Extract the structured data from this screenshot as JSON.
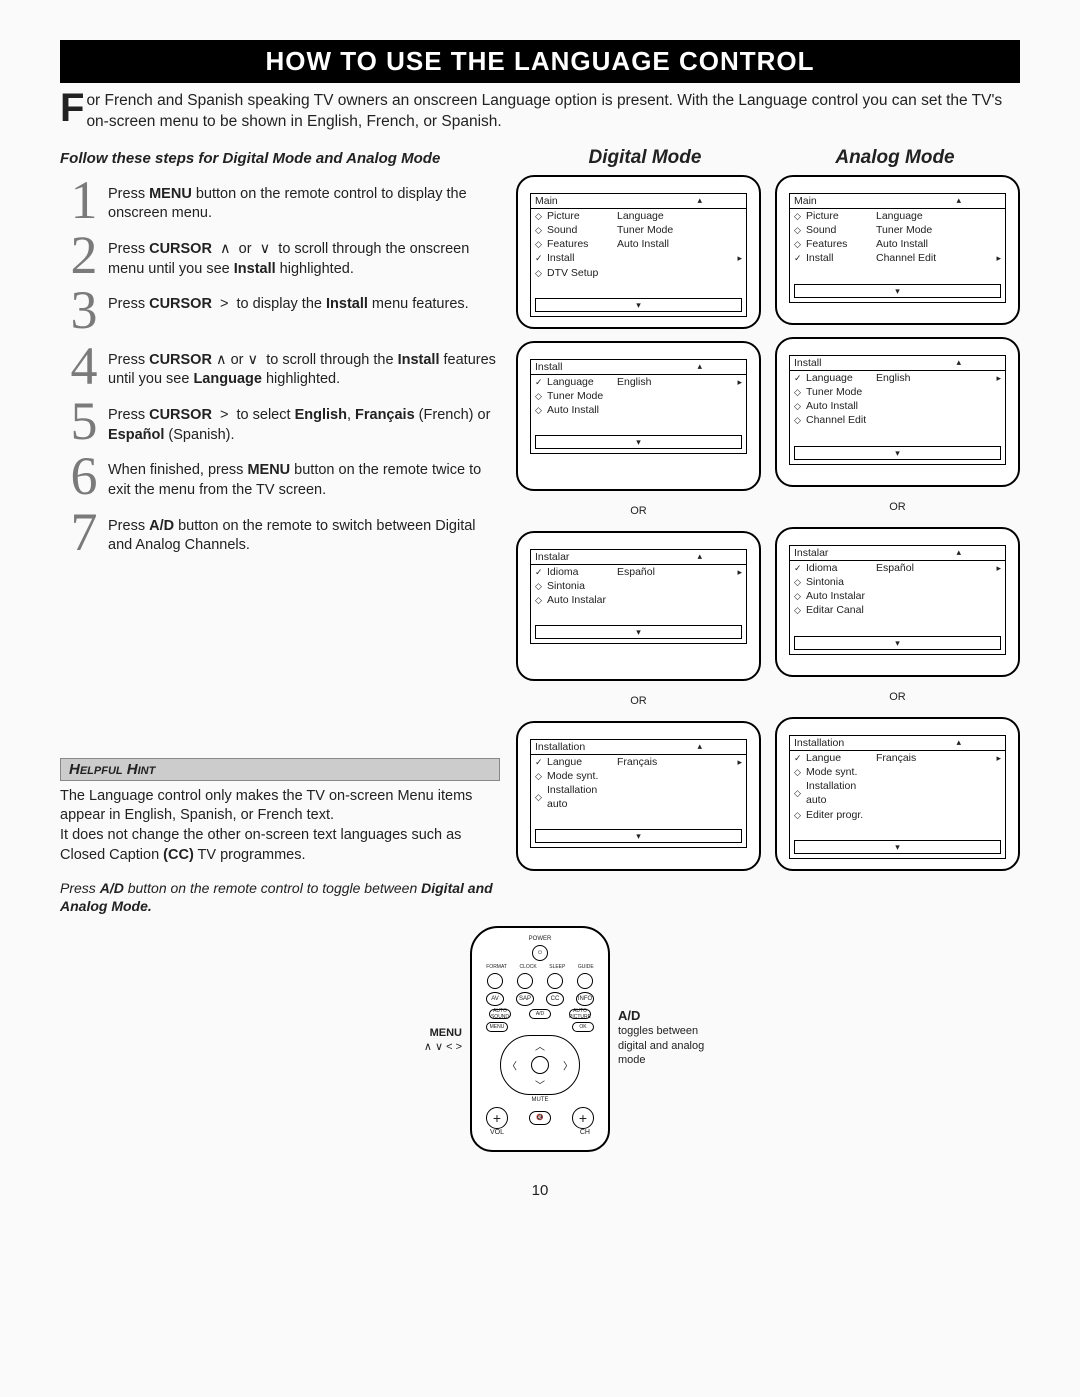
{
  "title": "HOW TO USE THE LANGUAGE CONTROL",
  "intro": "or French and Spanish speaking TV owners an onscreen Language option is present. With the Language control you can set the TV's on-screen menu to be shown in English, French, or Spanish.",
  "dropcap": "F",
  "sub_instruction": "Follow these steps for Digital Mode and Analog Mode",
  "mode_headers": {
    "digital": "Digital Mode",
    "analog": "Analog Mode"
  },
  "steps": [
    {
      "num": "1",
      "html": "Press <b>MENU</b> button on the remote control to display the onscreen menu."
    },
    {
      "num": "2",
      "html": "Press <b>CURSOR</b> &nbsp;∧&nbsp; or &nbsp;∨&nbsp; to scroll through the onscreen menu until you see <b>Install</b> highlighted."
    },
    {
      "num": "3",
      "html": "Press <b>CURSOR</b> &nbsp;&gt;&nbsp; to display the <b>Install</b> menu features."
    },
    {
      "num": "4",
      "html": "Press <b>CURSOR</b> ∧ or ∨ &nbsp;to scroll through the <b>Install</b> features until you see <b>Language</b> highlighted."
    },
    {
      "num": "5",
      "html": "Press <b>CURSOR</b> &nbsp;&gt;&nbsp; to select <b>English</b>, <b>Français</b> (French) or <b>Español</b> (Spanish)."
    },
    {
      "num": "6",
      "html": "When finished, press <b>MENU</b> button on the remote twice to exit the menu from the TV screen."
    },
    {
      "num": "7",
      "html": "Press <b>A/D</b> button on the remote to switch between Digital and Analog Channels."
    }
  ],
  "or_label": "OR",
  "screens": {
    "digital": [
      {
        "head": "Main",
        "rows": [
          {
            "b": "◇",
            "l": "Picture",
            "v": "Language"
          },
          {
            "b": "◇",
            "l": "Sound",
            "v": "Tuner Mode"
          },
          {
            "b": "◇",
            "l": "Features",
            "v": "Auto Install"
          },
          {
            "b": "✓",
            "l": "Install",
            "v": "",
            "r": "▸"
          },
          {
            "b": "◇",
            "l": "DTV Setup",
            "v": ""
          }
        ]
      },
      {
        "head": "Install",
        "rows": [
          {
            "b": "✓",
            "l": "Language",
            "v": "English",
            "r": "▸"
          },
          {
            "b": "◇",
            "l": "Tuner Mode",
            "v": ""
          },
          {
            "b": "◇",
            "l": "Auto Install",
            "v": ""
          }
        ]
      },
      {
        "head": "Instalar",
        "rows": [
          {
            "b": "✓",
            "l": "Idioma",
            "v": "Español",
            "r": "▸"
          },
          {
            "b": "◇",
            "l": "Sintonia",
            "v": ""
          },
          {
            "b": "◇",
            "l": "Auto Instalar",
            "v": ""
          }
        ]
      },
      {
        "head": "Installation",
        "rows": [
          {
            "b": "✓",
            "l": "Langue",
            "v": "Français",
            "r": "▸"
          },
          {
            "b": "◇",
            "l": "Mode synt.",
            "v": ""
          },
          {
            "b": "◇",
            "l": "Installation auto",
            "v": ""
          }
        ]
      }
    ],
    "analog": [
      {
        "head": "Main",
        "rows": [
          {
            "b": "◇",
            "l": "Picture",
            "v": "Language"
          },
          {
            "b": "◇",
            "l": "Sound",
            "v": "Tuner Mode"
          },
          {
            "b": "◇",
            "l": "Features",
            "v": "Auto Install"
          },
          {
            "b": "✓",
            "l": "Install",
            "v": "Channel Edit",
            "r": "▸"
          }
        ]
      },
      {
        "head": "Install",
        "rows": [
          {
            "b": "✓",
            "l": "Language",
            "v": "English",
            "r": "▸"
          },
          {
            "b": "◇",
            "l": "Tuner Mode",
            "v": ""
          },
          {
            "b": "◇",
            "l": "Auto Install",
            "v": ""
          },
          {
            "b": "◇",
            "l": "Channel Edit",
            "v": ""
          }
        ]
      },
      {
        "head": "Instalar",
        "rows": [
          {
            "b": "✓",
            "l": "Idioma",
            "v": "Español",
            "r": "▸"
          },
          {
            "b": "◇",
            "l": "Sintonia",
            "v": ""
          },
          {
            "b": "◇",
            "l": "Auto Instalar",
            "v": ""
          },
          {
            "b": "◇",
            "l": "Editar Canal",
            "v": ""
          }
        ]
      },
      {
        "head": "Installation",
        "rows": [
          {
            "b": "✓",
            "l": "Langue",
            "v": "Français",
            "r": "▸"
          },
          {
            "b": "◇",
            "l": "Mode synt.",
            "v": ""
          },
          {
            "b": "◇",
            "l": "Installation auto",
            "v": ""
          },
          {
            "b": "◇",
            "l": "Editer progr.",
            "v": ""
          }
        ]
      }
    ]
  },
  "hint": {
    "header": "Helpful Hint",
    "body_html": "The Language control only makes the TV on-screen Menu items appear in English, Spanish, or French text.<br>It does not change the other on-screen text languages such as Closed Caption <b>(CC)</b> TV programmes.",
    "note_html": "Press <b>A/D</b> button on the remote control to toggle between <b>Digital and Analog Mode.</b>"
  },
  "remote": {
    "left_label": "MENU",
    "left_cursors": "∧  ∨  <  >",
    "right_label": "A/D",
    "right_text": "toggles between digital and analog mode",
    "top_labels": [
      "FORMAT",
      "CLOCK",
      "SLEEP",
      "GUIDE"
    ],
    "row2": [
      "AV",
      "SAP",
      "CC",
      "INFO"
    ],
    "row3": [
      "AUTO SOUND",
      "A/D",
      "AUTO PICTURE"
    ],
    "row4": [
      "MENU",
      "OK"
    ],
    "mute": "MUTE",
    "vol": "VOL",
    "ch": "CH",
    "power": "POWER"
  },
  "page_num": "10",
  "colors": {
    "titlebar_bg": "#000000",
    "titlebar_fg": "#ffffff",
    "hint_bg": "#cccccc",
    "step_num": "#7a7a7a"
  }
}
